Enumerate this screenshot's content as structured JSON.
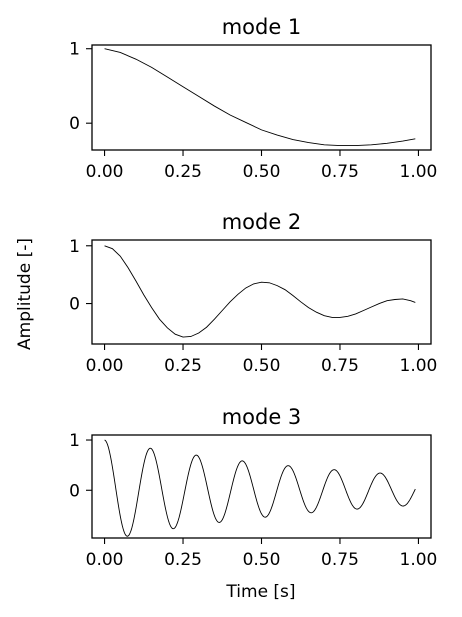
{
  "figure": {
    "ylabel": "Amplitude [-]",
    "xlabel": "Time [s]"
  },
  "chart_data": [
    {
      "type": "line",
      "title": "mode 1",
      "xlabel": "",
      "ylabel": "",
      "xlim": [
        -0.04,
        1.04
      ],
      "ylim": [
        -0.36,
        1.05
      ],
      "xticks": [
        "0.00",
        "0.25",
        "0.50",
        "0.75",
        "1.00"
      ],
      "yticks": [
        "0",
        "1"
      ],
      "series": [
        {
          "x": [
            0.0,
            0.05,
            0.1,
            0.15,
            0.2,
            0.25,
            0.3,
            0.35,
            0.4,
            0.45,
            0.5,
            0.55,
            0.6,
            0.65,
            0.7,
            0.75,
            0.8,
            0.85,
            0.9,
            0.95,
            0.99
          ],
          "y": [
            1.0,
            0.95,
            0.86,
            0.75,
            0.62,
            0.49,
            0.36,
            0.23,
            0.11,
            0.01,
            -0.09,
            -0.16,
            -0.22,
            -0.26,
            -0.29,
            -0.3,
            -0.3,
            -0.29,
            -0.27,
            -0.24,
            -0.21
          ]
        }
      ]
    },
    {
      "type": "line",
      "title": "mode 2",
      "xlabel": "",
      "ylabel": "",
      "xlim": [
        -0.04,
        1.04
      ],
      "ylim": [
        -0.7,
        1.1
      ],
      "xticks": [
        "0.00",
        "0.25",
        "0.50",
        "0.75",
        "1.00"
      ],
      "yticks": [
        "0",
        "1"
      ],
      "series": [
        {
          "x": [
            0.0,
            0.025,
            0.05,
            0.075,
            0.1,
            0.125,
            0.15,
            0.175,
            0.2,
            0.225,
            0.25,
            0.275,
            0.3,
            0.325,
            0.35,
            0.375,
            0.4,
            0.425,
            0.45,
            0.475,
            0.5,
            0.525,
            0.55,
            0.575,
            0.6,
            0.625,
            0.65,
            0.675,
            0.7,
            0.725,
            0.75,
            0.775,
            0.8,
            0.825,
            0.85,
            0.875,
            0.9,
            0.925,
            0.95,
            0.975,
            0.99
          ],
          "y": [
            1.0,
            0.95,
            0.82,
            0.62,
            0.39,
            0.15,
            -0.07,
            -0.27,
            -0.42,
            -0.53,
            -0.58,
            -0.57,
            -0.51,
            -0.41,
            -0.27,
            -0.12,
            0.03,
            0.16,
            0.27,
            0.34,
            0.37,
            0.36,
            0.31,
            0.24,
            0.14,
            0.03,
            -0.07,
            -0.15,
            -0.21,
            -0.24,
            -0.24,
            -0.22,
            -0.18,
            -0.12,
            -0.06,
            0.0,
            0.05,
            0.07,
            0.08,
            0.05,
            0.02
          ]
        }
      ]
    },
    {
      "type": "line",
      "title": "mode 3",
      "xlabel": "Time [s]",
      "ylabel": "",
      "xlim": [
        -0.04,
        1.04
      ],
      "ylim": [
        -0.95,
        1.1
      ],
      "xticks": [
        "0.00",
        "0.25",
        "0.50",
        "0.75",
        "1.00"
      ],
      "yticks": [
        "0",
        "1"
      ],
      "series": [
        {
          "damping": 1.22,
          "period": 0.1464,
          "x_end": 0.99
        }
      ]
    }
  ]
}
